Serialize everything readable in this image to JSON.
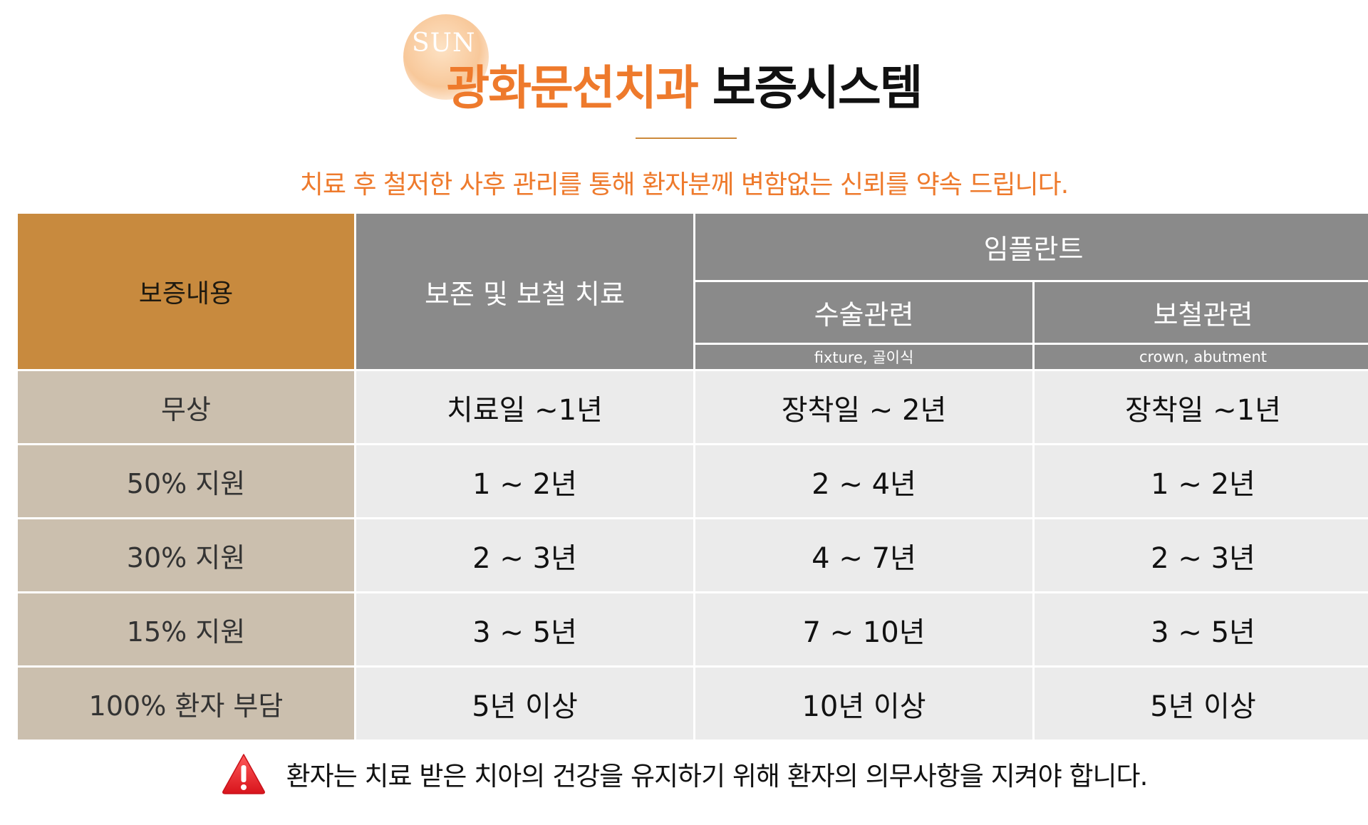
{
  "brand": {
    "logo_text": "SUN",
    "title_highlight": "광화문선치과",
    "title_rest": "보증시스템",
    "subtitle": "치료 후 철저한 사후 관리를 통해 환자분께 변함없는 신뢰를 약속 드립니다."
  },
  "table": {
    "header": {
      "label": "보증내용",
      "col1": "보존 및 보철 치료",
      "implant": "임플란트",
      "surgery": "수술관련",
      "prosthesis": "보철관련",
      "surgery_sub": "fixture, 골이식",
      "prosthesis_sub": "crown, abutment"
    },
    "rows": [
      {
        "label": "무상",
        "c1": "치료일 ~1년",
        "c2": "장착일 ~ 2년",
        "c3": "장착일 ~1년"
      },
      {
        "label": "50% 지원",
        "c1": "1 ~ 2년",
        "c2": "2 ~ 4년",
        "c3": "1 ~ 2년"
      },
      {
        "label": "30% 지원",
        "c1": "2 ~ 3년",
        "c2": "4 ~ 7년",
        "c3": "2 ~ 3년"
      },
      {
        "label": "15% 지원",
        "c1": "3 ~ 5년",
        "c2": "7 ~ 10년",
        "c3": "3 ~ 5년"
      },
      {
        "label": "100% 환자 부담",
        "c1": "5년 이상",
        "c2": "10년 이상",
        "c3": "5년 이상"
      }
    ]
  },
  "notice": {
    "icon": "warning-icon",
    "text": "환자는 치료 받은 치아의 건강을 유지하기 위해 환자의 의무사항을 지켜야 합니다."
  },
  "colors": {
    "accent_orange": "#ee7a2c",
    "header_gold": "#c88a3e",
    "header_gray": "#8a8a8a",
    "row_label_beige": "#cbbfae",
    "cell_gray": "#ebebeb",
    "warning_red": "#e8242b"
  }
}
